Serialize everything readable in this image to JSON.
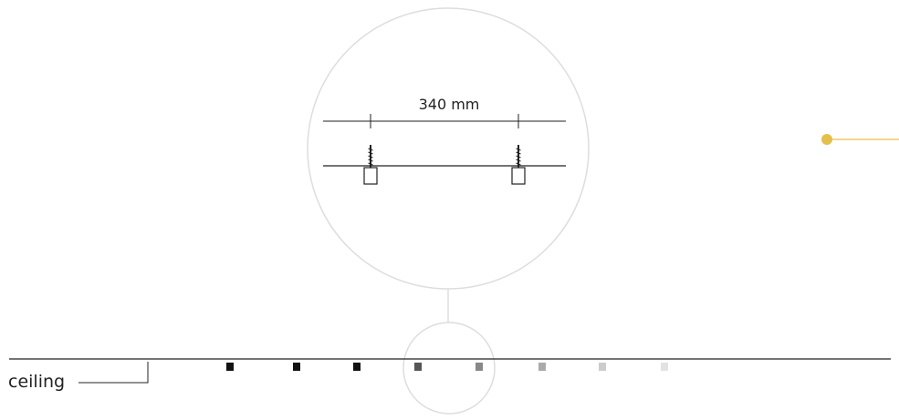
{
  "diagram": {
    "dimension_label": "340 mm",
    "surface_label": "ceiling",
    "screw_count": 2,
    "anchor_marker_count": 8,
    "colors": {
      "line": "#222222",
      "circle_outline": "#dddddd",
      "accent": "#e4c04a",
      "marker_shades": [
        "#111111",
        "#111111",
        "#111111",
        "#555555",
        "#888888",
        "#aaaaaa",
        "#cccccc",
        "#e2e2e2"
      ]
    },
    "icons": {
      "screw": "screw-icon",
      "magnifier": "magnifier-circle",
      "accent_dot": "yellow-dot-marker"
    }
  }
}
